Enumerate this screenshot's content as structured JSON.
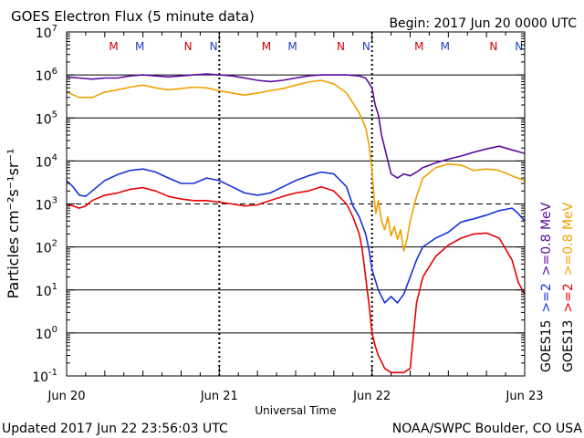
{
  "chart_data": {
    "type": "line",
    "title": "GOES Electron Flux (5 minute data)",
    "begin": "Begin: 2017 Jun 20 0000 UTC",
    "xlabel": "Universal Time",
    "ylabel": "Particles cm⁻²s⁻¹sr⁻¹",
    "y_scale": "log",
    "ylim": [
      0.1,
      10000000
    ],
    "xlim_hours": [
      0,
      72
    ],
    "x_ticks": [
      {
        "h": 0,
        "label": "Jun 20"
      },
      {
        "h": 24,
        "label": "Jun 21"
      },
      {
        "h": 48,
        "label": "Jun 22"
      },
      {
        "h": 72,
        "label": "Jun 23"
      }
    ],
    "y_tick_labels": [
      {
        "base": "10",
        "exp": "7",
        "value": 10000000
      },
      {
        "base": "10",
        "exp": "6",
        "value": 1000000
      },
      {
        "base": "10",
        "exp": "5",
        "value": 100000
      },
      {
        "base": "10",
        "exp": "4",
        "value": 10000
      },
      {
        "base": "10",
        "exp": "3",
        "value": 1000
      },
      {
        "base": "10",
        "exp": "2",
        "value": 100
      },
      {
        "base": "10",
        "exp": "1",
        "value": 10
      },
      {
        "base": "10",
        "exp": "0",
        "value": 1
      },
      {
        "base": "10",
        "exp": "-1",
        "value": 0.1
      }
    ],
    "threshold_line": 1000,
    "grid": "horizontal lines at each decade",
    "markers": [
      {
        "label": "M",
        "hour": 7.4,
        "color": "#d00000"
      },
      {
        "label": "M",
        "hour": 11.5,
        "color": "#1f3fbf"
      },
      {
        "label": "N",
        "hour": 19.1,
        "color": "#d00000"
      },
      {
        "label": "N",
        "hour": 23.1,
        "color": "#1f3fbf"
      },
      {
        "label": "M",
        "hour": 31.4,
        "color": "#d00000"
      },
      {
        "label": "M",
        "hour": 35.5,
        "color": "#1f3fbf"
      },
      {
        "label": "N",
        "hour": 43.1,
        "color": "#d00000"
      },
      {
        "label": "N",
        "hour": 47.1,
        "color": "#1f3fbf"
      },
      {
        "label": "M",
        "hour": 55.4,
        "color": "#d00000"
      },
      {
        "label": "M",
        "hour": 59.5,
        "color": "#1f3fbf"
      },
      {
        "label": "N",
        "hour": 67.1,
        "color": "#d00000"
      },
      {
        "label": "N",
        "hour": 71.1,
        "color": "#1f3fbf"
      }
    ],
    "series": [
      {
        "name": "GOES15 >=0.8 MeV",
        "color": "#5b0a9e",
        "points": [
          [
            0,
            900000
          ],
          [
            2,
            850000
          ],
          [
            4,
            800000
          ],
          [
            6,
            850000
          ],
          [
            8,
            850000
          ],
          [
            10,
            950000
          ],
          [
            12,
            1000000
          ],
          [
            14,
            950000
          ],
          [
            16,
            900000
          ],
          [
            18,
            950000
          ],
          [
            20,
            1000000
          ],
          [
            22,
            1050000
          ],
          [
            24,
            1000000
          ],
          [
            26,
            950000
          ],
          [
            28,
            850000
          ],
          [
            30,
            750000
          ],
          [
            32,
            700000
          ],
          [
            34,
            750000
          ],
          [
            36,
            850000
          ],
          [
            38,
            950000
          ],
          [
            40,
            1000000
          ],
          [
            42,
            1000000
          ],
          [
            44,
            1000000
          ],
          [
            46,
            950000
          ],
          [
            47,
            850000
          ],
          [
            48,
            500000
          ],
          [
            48.5,
            200000
          ],
          [
            49,
            120000
          ],
          [
            49.5,
            40000
          ],
          [
            50,
            20000
          ],
          [
            51,
            5000
          ],
          [
            52,
            4000
          ],
          [
            53,
            5000
          ],
          [
            54,
            4500
          ],
          [
            55,
            5500
          ],
          [
            56,
            7000
          ],
          [
            58,
            9000
          ],
          [
            60,
            11000
          ],
          [
            62,
            13000
          ],
          [
            64,
            16000
          ],
          [
            66,
            19000
          ],
          [
            68,
            22000
          ],
          [
            70,
            18000
          ],
          [
            72,
            15000
          ]
        ]
      },
      {
        "name": "GOES13 >=0.8 MeV",
        "color": "#f0a000",
        "points": [
          [
            0,
            400000
          ],
          [
            2,
            300000
          ],
          [
            4,
            300000
          ],
          [
            6,
            400000
          ],
          [
            8,
            450000
          ],
          [
            10,
            520000
          ],
          [
            12,
            580000
          ],
          [
            14,
            500000
          ],
          [
            16,
            450000
          ],
          [
            18,
            480000
          ],
          [
            20,
            520000
          ],
          [
            22,
            500000
          ],
          [
            24,
            430000
          ],
          [
            26,
            380000
          ],
          [
            28,
            340000
          ],
          [
            30,
            380000
          ],
          [
            32,
            430000
          ],
          [
            34,
            480000
          ],
          [
            36,
            580000
          ],
          [
            38,
            680000
          ],
          [
            40,
            750000
          ],
          [
            42,
            620000
          ],
          [
            44,
            380000
          ],
          [
            46,
            130000
          ],
          [
            47,
            60000
          ],
          [
            47.5,
            25000
          ],
          [
            48,
            6000
          ],
          [
            48.3,
            1500
          ],
          [
            48.6,
            600
          ],
          [
            49,
            1200
          ],
          [
            49.5,
            400
          ],
          [
            50,
            250
          ],
          [
            50.5,
            500
          ],
          [
            51,
            180
          ],
          [
            51.5,
            300
          ],
          [
            52,
            150
          ],
          [
            52.5,
            250
          ],
          [
            53,
            80
          ],
          [
            53.5,
            150
          ],
          [
            54,
            400
          ],
          [
            55,
            1500
          ],
          [
            56,
            4000
          ],
          [
            58,
            7000
          ],
          [
            60,
            8500
          ],
          [
            62,
            8000
          ],
          [
            64,
            6000
          ],
          [
            66,
            6500
          ],
          [
            68,
            6000
          ],
          [
            70,
            4500
          ],
          [
            72,
            3500
          ]
        ]
      },
      {
        "name": "GOES15 >=2 MeV",
        "color": "#1533d6",
        "points": [
          [
            0,
            3500
          ],
          [
            1,
            2500
          ],
          [
            2,
            1600
          ],
          [
            3,
            1500
          ],
          [
            4,
            2000
          ],
          [
            6,
            3500
          ],
          [
            8,
            4800
          ],
          [
            10,
            6000
          ],
          [
            12,
            6500
          ],
          [
            14,
            5500
          ],
          [
            16,
            4000
          ],
          [
            18,
            3000
          ],
          [
            20,
            3000
          ],
          [
            22,
            4000
          ],
          [
            24,
            3500
          ],
          [
            26,
            2500
          ],
          [
            28,
            1800
          ],
          [
            30,
            1600
          ],
          [
            32,
            1800
          ],
          [
            34,
            2500
          ],
          [
            36,
            3500
          ],
          [
            38,
            4500
          ],
          [
            40,
            5500
          ],
          [
            42,
            5000
          ],
          [
            44,
            2500
          ],
          [
            45,
            900
          ],
          [
            46,
            500
          ],
          [
            47,
            200
          ],
          [
            47.5,
            90
          ],
          [
            48,
            30
          ],
          [
            49,
            10
          ],
          [
            50,
            5
          ],
          [
            51,
            7
          ],
          [
            52,
            5
          ],
          [
            53,
            8
          ],
          [
            54,
            20
          ],
          [
            55,
            50
          ],
          [
            56,
            100
          ],
          [
            58,
            160
          ],
          [
            60,
            220
          ],
          [
            62,
            380
          ],
          [
            64,
            450
          ],
          [
            66,
            550
          ],
          [
            68,
            700
          ],
          [
            70,
            800
          ],
          [
            71,
            600
          ],
          [
            72,
            400
          ]
        ]
      },
      {
        "name": "GOES13 >=2 MeV",
        "color": "#e80000",
        "points": [
          [
            0,
            1000
          ],
          [
            1,
            900
          ],
          [
            2,
            800
          ],
          [
            3,
            900
          ],
          [
            4,
            1200
          ],
          [
            6,
            1600
          ],
          [
            8,
            1800
          ],
          [
            10,
            2200
          ],
          [
            12,
            2400
          ],
          [
            14,
            2000
          ],
          [
            16,
            1500
          ],
          [
            18,
            1300
          ],
          [
            20,
            1200
          ],
          [
            22,
            1200
          ],
          [
            24,
            1100
          ],
          [
            26,
            1000
          ],
          [
            28,
            900
          ],
          [
            30,
            950
          ],
          [
            32,
            1200
          ],
          [
            34,
            1500
          ],
          [
            36,
            1800
          ],
          [
            38,
            2000
          ],
          [
            40,
            2500
          ],
          [
            42,
            2000
          ],
          [
            44,
            1000
          ],
          [
            45,
            500
          ],
          [
            46,
            200
          ],
          [
            46.5,
            80
          ],
          [
            47,
            20
          ],
          [
            47.5,
            5
          ],
          [
            48,
            1
          ],
          [
            48.5,
            0.5
          ],
          [
            49,
            0.3
          ],
          [
            50,
            0.15
          ],
          [
            51,
            0.12
          ],
          [
            52,
            0.12
          ],
          [
            53,
            0.12
          ],
          [
            54,
            0.15
          ],
          [
            55,
            5
          ],
          [
            56,
            20
          ],
          [
            58,
            60
          ],
          [
            60,
            110
          ],
          [
            62,
            160
          ],
          [
            64,
            200
          ],
          [
            66,
            210
          ],
          [
            68,
            160
          ],
          [
            70,
            50
          ],
          [
            71,
            15
          ],
          [
            72,
            8
          ]
        ]
      }
    ],
    "legend": [
      {
        "text": "GOES15",
        "color": "#000000"
      },
      {
        "text": ">=2",
        "color": "#1533d6"
      },
      {
        "text": ">=0.8 MeV",
        "color": "#5b0a9e"
      },
      {
        "text": "GOES13",
        "color": "#000000"
      },
      {
        "text": ">=2",
        "color": "#e80000"
      },
      {
        "text": ">=0.8 MeV",
        "color": "#f0a000"
      }
    ],
    "footer_left": "Updated 2017 Jun 22 23:56:03 UTC",
    "footer_right": "NOAA/SWPC Boulder, CO USA"
  }
}
